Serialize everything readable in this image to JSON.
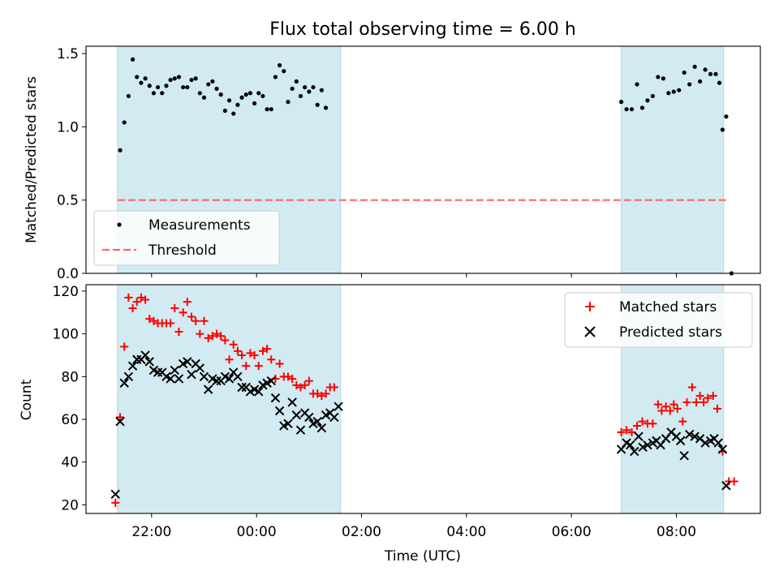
{
  "title": "Flux total observing time = 6.00 h",
  "colors": {
    "shade": "#add8e6",
    "matched": "#ff0000",
    "predicted": "#000000",
    "threshold": "#ff6666",
    "measurement": "#000000"
  },
  "chart_data": [
    {
      "type": "scatter",
      "ylabel": "Matched/Predicted stars",
      "ylim": [
        0,
        1.55
      ],
      "yticks": [
        0.0,
        0.5,
        1.0,
        1.5
      ],
      "ytick_labels": [
        "0.0",
        "0.5",
        "1.0",
        "1.5"
      ],
      "x_unit": "hours relative to 00:00 UTC",
      "xlim": [
        -3.25,
        9.6
      ],
      "shaded_intervals": [
        [
          -2.65,
          1.6
        ],
        [
          6.95,
          8.9
        ]
      ],
      "legend": {
        "location": "lower-left",
        "entries": [
          "Measurements",
          "Threshold"
        ]
      },
      "threshold": {
        "name": "Threshold",
        "value": 0.5,
        "x_range": [
          -2.65,
          8.95
        ]
      },
      "series": [
        {
          "name": "Measurements",
          "points": [
            [
              -2.6,
              0.84
            ],
            [
              -2.52,
              1.03
            ],
            [
              -2.44,
              1.21
            ],
            [
              -2.36,
              1.46
            ],
            [
              -2.28,
              1.34
            ],
            [
              -2.2,
              1.3
            ],
            [
              -2.12,
              1.33
            ],
            [
              -2.04,
              1.28
            ],
            [
              -1.96,
              1.23
            ],
            [
              -1.88,
              1.27
            ],
            [
              -1.8,
              1.23
            ],
            [
              -1.72,
              1.28
            ],
            [
              -1.64,
              1.32
            ],
            [
              -1.56,
              1.33
            ],
            [
              -1.48,
              1.34
            ],
            [
              -1.4,
              1.27
            ],
            [
              -1.32,
              1.27
            ],
            [
              -1.24,
              1.32
            ],
            [
              -1.16,
              1.33
            ],
            [
              -1.08,
              1.23
            ],
            [
              -1.0,
              1.2
            ],
            [
              -0.92,
              1.29
            ],
            [
              -0.84,
              1.31
            ],
            [
              -0.76,
              1.26
            ],
            [
              -0.68,
              1.22
            ],
            [
              -0.6,
              1.11
            ],
            [
              -0.52,
              1.18
            ],
            [
              -0.44,
              1.09
            ],
            [
              -0.36,
              1.15
            ],
            [
              -0.28,
              1.2
            ],
            [
              -0.2,
              1.22
            ],
            [
              -0.12,
              1.23
            ],
            [
              -0.04,
              1.16
            ],
            [
              0.04,
              1.23
            ],
            [
              0.12,
              1.21
            ],
            [
              0.2,
              1.12
            ],
            [
              0.28,
              1.12
            ],
            [
              0.36,
              1.34
            ],
            [
              0.44,
              1.42
            ],
            [
              0.52,
              1.38
            ],
            [
              0.6,
              1.17
            ],
            [
              0.68,
              1.26
            ],
            [
              0.76,
              1.31
            ],
            [
              0.84,
              1.21
            ],
            [
              0.92,
              1.27
            ],
            [
              1.0,
              1.24
            ],
            [
              1.08,
              1.27
            ],
            [
              1.16,
              1.15
            ],
            [
              1.24,
              1.25
            ],
            [
              1.32,
              1.13
            ],
            [
              6.95,
              1.17
            ],
            [
              7.05,
              1.12
            ],
            [
              7.15,
              1.12
            ],
            [
              7.25,
              1.29
            ],
            [
              7.35,
              1.13
            ],
            [
              7.45,
              1.18
            ],
            [
              7.55,
              1.21
            ],
            [
              7.65,
              1.34
            ],
            [
              7.75,
              1.33
            ],
            [
              7.85,
              1.23
            ],
            [
              7.95,
              1.24
            ],
            [
              8.05,
              1.25
            ],
            [
              8.15,
              1.37
            ],
            [
              8.25,
              1.29
            ],
            [
              8.35,
              1.41
            ],
            [
              8.45,
              1.31
            ],
            [
              8.55,
              1.39
            ],
            [
              8.65,
              1.36
            ],
            [
              8.75,
              1.36
            ],
            [
              8.82,
              1.3
            ],
            [
              8.88,
              0.98
            ],
            [
              8.95,
              1.07
            ],
            [
              9.05,
              0.0
            ]
          ]
        }
      ]
    },
    {
      "type": "scatter",
      "ylabel": "Count",
      "xlabel": "Time (UTC)",
      "ylim": [
        16,
        123
      ],
      "yticks": [
        20,
        40,
        60,
        80,
        100,
        120
      ],
      "ytick_labels": [
        "20",
        "40",
        "60",
        "80",
        "100",
        "120"
      ],
      "x_unit": "hours relative to 00:00 UTC",
      "xlim": [
        -3.25,
        9.6
      ],
      "xticks": [
        -2,
        0,
        2,
        4,
        6,
        8
      ],
      "xtick_labels": [
        "22:00",
        "00:00",
        "02:00",
        "04:00",
        "06:00",
        "08:00"
      ],
      "shaded_intervals": [
        [
          -2.65,
          1.6
        ],
        [
          6.95,
          8.9
        ]
      ],
      "legend": {
        "location": "upper-right",
        "entries": [
          "Matched stars",
          "Predicted stars"
        ]
      },
      "series": [
        {
          "name": "Matched stars",
          "marker": "plus",
          "points": [
            [
              -2.69,
              21
            ],
            [
              -2.6,
              61
            ],
            [
              -2.52,
              94
            ],
            [
              -2.44,
              117
            ],
            [
              -2.36,
              112
            ],
            [
              -2.28,
              115
            ],
            [
              -2.2,
              117
            ],
            [
              -2.12,
              116
            ],
            [
              -2.04,
              107
            ],
            [
              -1.96,
              106
            ],
            [
              -1.88,
              105
            ],
            [
              -1.8,
              105
            ],
            [
              -1.72,
              105
            ],
            [
              -1.64,
              105
            ],
            [
              -1.56,
              112
            ],
            [
              -1.48,
              101
            ],
            [
              -1.4,
              110
            ],
            [
              -1.32,
              115
            ],
            [
              -1.24,
              108
            ],
            [
              -1.16,
              106
            ],
            [
              -1.08,
              100
            ],
            [
              -1.0,
              106
            ],
            [
              -0.92,
              98
            ],
            [
              -0.84,
              99
            ],
            [
              -0.76,
              100
            ],
            [
              -0.68,
              99
            ],
            [
              -0.6,
              97
            ],
            [
              -0.52,
              88
            ],
            [
              -0.44,
              95
            ],
            [
              -0.36,
              92
            ],
            [
              -0.28,
              90
            ],
            [
              -0.2,
              85
            ],
            [
              -0.12,
              91
            ],
            [
              -0.04,
              90
            ],
            [
              0.04,
              85
            ],
            [
              0.12,
              92
            ],
            [
              0.2,
              93
            ],
            [
              0.28,
              88
            ],
            [
              0.36,
              79
            ],
            [
              0.44,
              86
            ],
            [
              0.52,
              80
            ],
            [
              0.6,
              80
            ],
            [
              0.68,
              79
            ],
            [
              0.76,
              76
            ],
            [
              0.84,
              75
            ],
            [
              0.92,
              76
            ],
            [
              1.0,
              78
            ],
            [
              1.08,
              72
            ],
            [
              1.16,
              72
            ],
            [
              1.24,
              71
            ],
            [
              1.32,
              72
            ],
            [
              1.4,
              75
            ],
            [
              1.48,
              75
            ],
            [
              6.95,
              54
            ],
            [
              7.05,
              55
            ],
            [
              7.15,
              54
            ],
            [
              7.25,
              57
            ],
            [
              7.35,
              59
            ],
            [
              7.45,
              58
            ],
            [
              7.55,
              58
            ],
            [
              7.65,
              67
            ],
            [
              7.72,
              64
            ],
            [
              7.8,
              66
            ],
            [
              7.88,
              64
            ],
            [
              7.95,
              67
            ],
            [
              8.02,
              65
            ],
            [
              8.12,
              59
            ],
            [
              8.2,
              68
            ],
            [
              8.3,
              75
            ],
            [
              8.38,
              68
            ],
            [
              8.45,
              71
            ],
            [
              8.52,
              68
            ],
            [
              8.6,
              70
            ],
            [
              8.7,
              71
            ],
            [
              8.78,
              65
            ],
            [
              8.88,
              45
            ],
            [
              9.0,
              31
            ],
            [
              9.1,
              31
            ]
          ]
        },
        {
          "name": "Predicted stars",
          "marker": "x",
          "points": [
            [
              -2.69,
              25
            ],
            [
              -2.6,
              59
            ],
            [
              -2.52,
              77
            ],
            [
              -2.44,
              80
            ],
            [
              -2.36,
              85
            ],
            [
              -2.28,
              88
            ],
            [
              -2.2,
              88
            ],
            [
              -2.12,
              90
            ],
            [
              -2.04,
              87
            ],
            [
              -1.96,
              83
            ],
            [
              -1.88,
              82
            ],
            [
              -1.8,
              82
            ],
            [
              -1.72,
              80
            ],
            [
              -1.64,
              79
            ],
            [
              -1.56,
              83
            ],
            [
              -1.48,
              79
            ],
            [
              -1.4,
              86
            ],
            [
              -1.32,
              87
            ],
            [
              -1.24,
              81
            ],
            [
              -1.16,
              86
            ],
            [
              -1.08,
              84
            ],
            [
              -1.0,
              80
            ],
            [
              -0.92,
              74
            ],
            [
              -0.84,
              79
            ],
            [
              -0.76,
              78
            ],
            [
              -0.68,
              78
            ],
            [
              -0.6,
              80
            ],
            [
              -0.52,
              79
            ],
            [
              -0.44,
              82
            ],
            [
              -0.36,
              80
            ],
            [
              -0.28,
              75
            ],
            [
              -0.2,
              75
            ],
            [
              -0.12,
              73
            ],
            [
              -0.04,
              74
            ],
            [
              0.04,
              73
            ],
            [
              0.12,
              76
            ],
            [
              0.2,
              77
            ],
            [
              0.28,
              78
            ],
            [
              0.36,
              70
            ],
            [
              0.44,
              64
            ],
            [
              0.52,
              57
            ],
            [
              0.6,
              58
            ],
            [
              0.68,
              68
            ],
            [
              0.76,
              62
            ],
            [
              0.84,
              55
            ],
            [
              0.92,
              63
            ],
            [
              1.0,
              61
            ],
            [
              1.08,
              58
            ],
            [
              1.16,
              59
            ],
            [
              1.24,
              56
            ],
            [
              1.32,
              62
            ],
            [
              1.4,
              63
            ],
            [
              1.48,
              61
            ],
            [
              1.56,
              66
            ],
            [
              6.95,
              46
            ],
            [
              7.05,
              49
            ],
            [
              7.12,
              48
            ],
            [
              7.2,
              45
            ],
            [
              7.28,
              52
            ],
            [
              7.36,
              47
            ],
            [
              7.45,
              48
            ],
            [
              7.55,
              49
            ],
            [
              7.62,
              50
            ],
            [
              7.7,
              48
            ],
            [
              7.8,
              51
            ],
            [
              7.9,
              54
            ],
            [
              8.0,
              52
            ],
            [
              8.08,
              50
            ],
            [
              8.15,
              43
            ],
            [
              8.25,
              53
            ],
            [
              8.35,
              52
            ],
            [
              8.45,
              51
            ],
            [
              8.55,
              49
            ],
            [
              8.65,
              50
            ],
            [
              8.72,
              51
            ],
            [
              8.8,
              49
            ],
            [
              8.88,
              46
            ],
            [
              8.95,
              29
            ]
          ]
        }
      ]
    }
  ]
}
